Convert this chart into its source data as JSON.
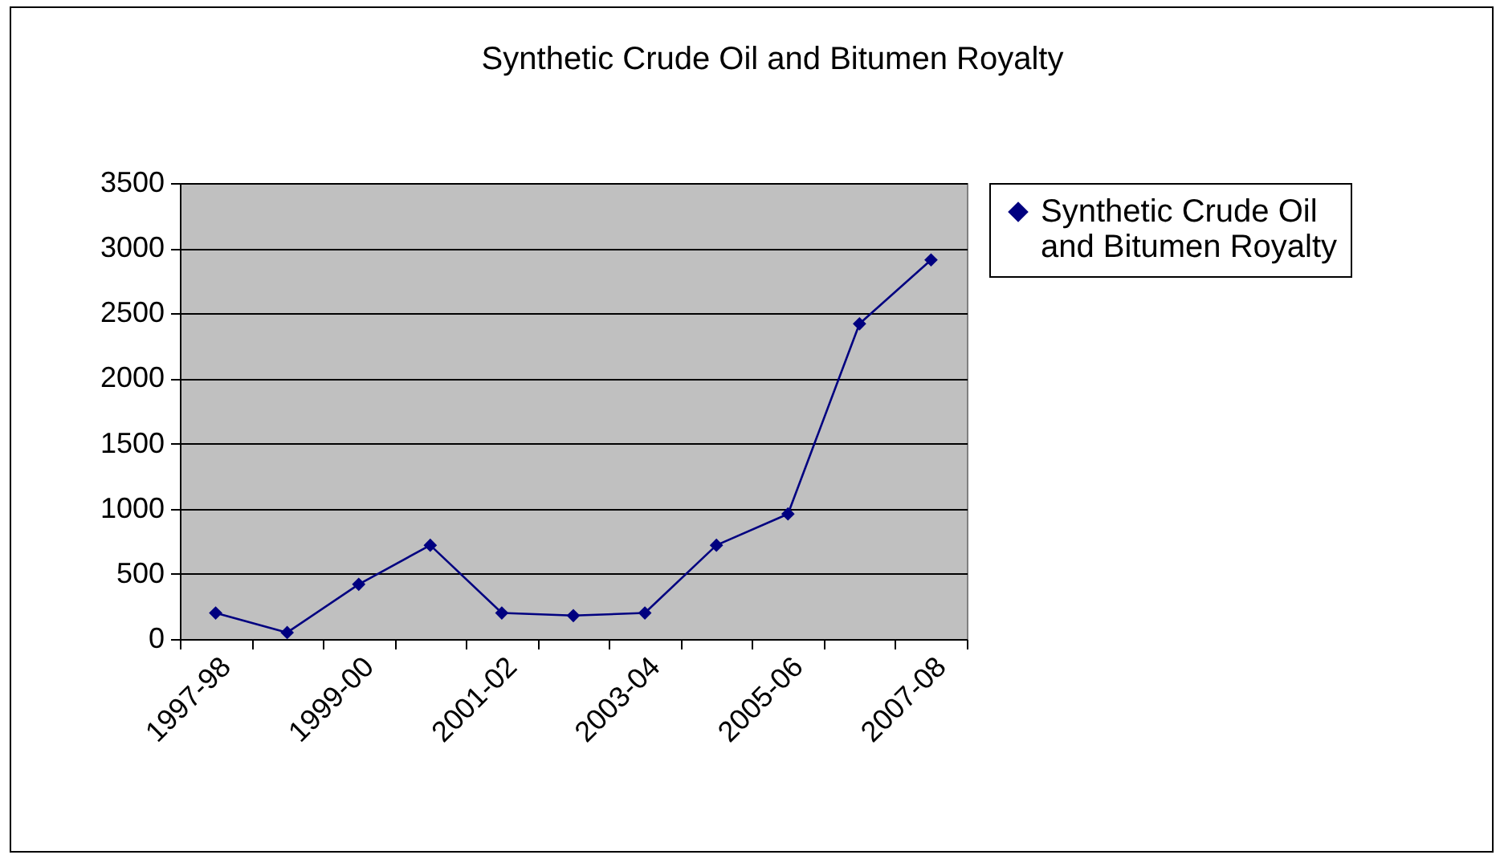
{
  "chart_data": {
    "type": "line",
    "title": "Synthetic Crude Oil and Bitumen Royalty",
    "categories": [
      "1997-98",
      null,
      "1999-00",
      null,
      "2001-02",
      null,
      "2003-04",
      null,
      "2005-06",
      null,
      "2007-08"
    ],
    "series": [
      {
        "name": "Synthetic Crude Oil and Bitumen Royalty",
        "color": "#000080",
        "values": [
          200,
          50,
          420,
          720,
          200,
          180,
          200,
          720,
          960,
          2420,
          2910
        ]
      }
    ],
    "ylim": [
      0,
      3500
    ],
    "yticks": [
      0,
      500,
      1000,
      1500,
      2000,
      2500,
      3000,
      3500
    ],
    "grid": "y",
    "legend": "right",
    "marker": "diamond",
    "line_style": "solid"
  }
}
